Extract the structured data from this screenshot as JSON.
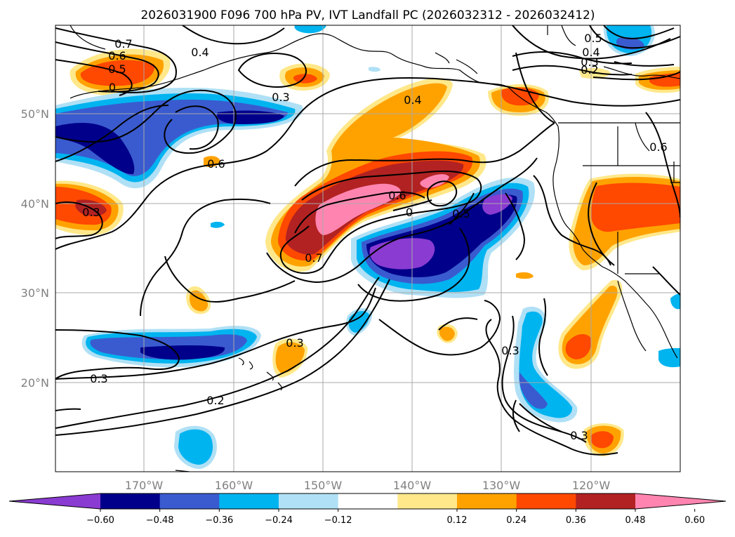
{
  "title": "2026031900 F096 700 hPa PV, IVT Landfall PC (2026032312 - 2026032412)",
  "lat_ticks": [
    "50°N",
    "40°N",
    "30°N",
    "20°N"
  ],
  "lon_ticks": [
    "170°W",
    "160°W",
    "150°W",
    "140°W",
    "130°W",
    "120°W"
  ],
  "colorbar": {
    "colors": [
      "#8a3bd1",
      "#00008b",
      "#3a5bcf",
      "#00b4f0",
      "#b0e0f5",
      "#ffffff",
      "#ffe88a",
      "#ffa200",
      "#ff4800",
      "#b22222",
      "#ff85b0"
    ],
    "tick_labels": [
      "−0.60",
      "−0.48",
      "−0.36",
      "−0.24",
      "−0.12",
      "0.12",
      "0.24",
      "0.36",
      "0.48",
      "0.60"
    ]
  },
  "contour_labels": [
    "0.7",
    "0.6",
    "0.5",
    "0",
    "0.4",
    "0.3",
    "0.6",
    "0.4",
    "0.6",
    "0.7",
    "0.5",
    "0",
    "0.3",
    "0.3",
    "0.2",
    "0.3",
    "0.3",
    "0.3",
    "0.6",
    "0.5",
    "0.4",
    "0.3",
    "0.2"
  ],
  "colors": {
    "pos_low": "#ffe88a",
    "pos_mid": "#ffa200",
    "pos_hi": "#ff4800",
    "pos_vhi": "#b22222",
    "pos_max": "#ff85b0",
    "neg_low": "#b0e0f5",
    "neg_mid": "#00b4f0",
    "neg_hi": "#3a5bcf",
    "neg_vhi": "#00008b",
    "neg_max": "#8a3bd1"
  }
}
